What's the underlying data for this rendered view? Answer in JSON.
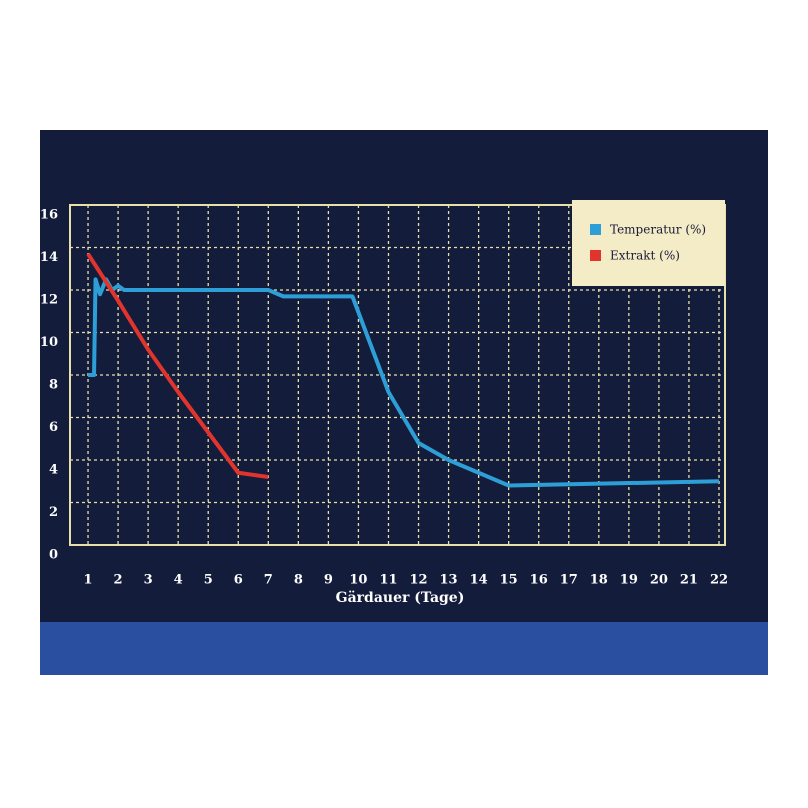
{
  "chart_data": {
    "type": "line",
    "x_label": "Gärdauer (Tage)",
    "xlim": [
      0.4,
      22.2
    ],
    "ylim": [
      0,
      16
    ],
    "xticks": [
      1,
      2,
      3,
      4,
      5,
      6,
      7,
      8,
      9,
      10,
      11,
      12,
      13,
      14,
      15,
      16,
      17,
      18,
      19,
      20,
      21,
      22
    ],
    "yticks": [
      0,
      2,
      4,
      6,
      8,
      10,
      12,
      14,
      16
    ],
    "grid": true,
    "legend": "top-right",
    "series": [
      {
        "name": "Temperatur (%)",
        "color": "#2e9fd6",
        "x": [
          1,
          1.2,
          1.25,
          1.4,
          1.6,
          1.8,
          2,
          2.2,
          7,
          7.5,
          9.8,
          11,
          12,
          13,
          15,
          22
        ],
        "values": [
          8,
          8,
          12.5,
          11.8,
          12.5,
          12,
          12.2,
          12,
          12,
          11.7,
          11.7,
          7.2,
          4.8,
          4,
          2.8,
          3
        ]
      },
      {
        "name": "Extrakt (%)",
        "color": "#e0342c",
        "x": [
          1,
          2,
          3,
          4,
          5,
          6,
          7
        ],
        "values": [
          13.7,
          11.5,
          9.2,
          7.2,
          5.3,
          3.4,
          3.2
        ]
      }
    ]
  }
}
